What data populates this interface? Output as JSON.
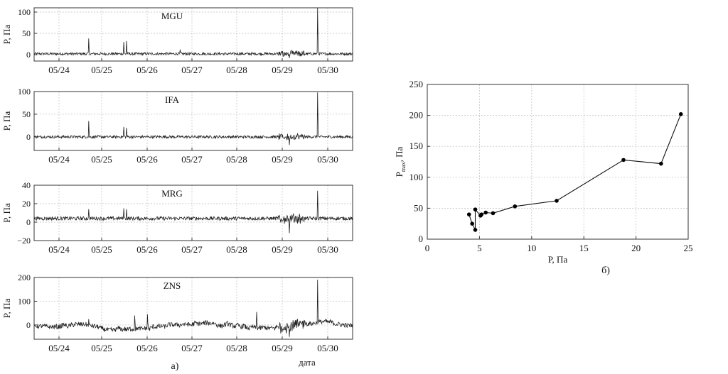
{
  "figure": {
    "label_a": "а)",
    "label_b": "б)"
  },
  "chart_data": [
    {
      "type": "line",
      "title": "MGU",
      "ylabel": "P, Па",
      "xlabel": "",
      "x_tick_labels": [
        "05/24",
        "05/25",
        "05/26",
        "05/27",
        "05/28",
        "05/29",
        "05/30"
      ],
      "xlim": [
        0,
        7.3
      ],
      "ylim": [
        -15,
        110
      ],
      "y_ticks": [
        0,
        50,
        100
      ],
      "grid": true,
      "events": [
        {
          "t": 1.25,
          "value": 38
        },
        {
          "t": 2.05,
          "value": 30
        },
        {
          "t": 2.12,
          "value": 32
        },
        {
          "t": 3.35,
          "value": 12
        },
        {
          "t": 5.85,
          "value": -8
        },
        {
          "t": 6.5,
          "value": 112
        }
      ],
      "noise_amplitude": 3,
      "baseline": 2
    },
    {
      "type": "line",
      "title": "IFA",
      "ylabel": "P, Па",
      "xlabel": "",
      "x_tick_labels": [
        "05/24",
        "05/25",
        "05/26",
        "05/27",
        "05/28",
        "05/29",
        "05/30"
      ],
      "xlim": [
        0,
        7.3
      ],
      "ylim": [
        -30,
        100
      ],
      "y_ticks": [
        0,
        50,
        100
      ],
      "grid": true,
      "events": [
        {
          "t": 1.25,
          "value": 35
        },
        {
          "t": 2.05,
          "value": 22
        },
        {
          "t": 2.12,
          "value": 20
        },
        {
          "t": 5.85,
          "value": -18
        },
        {
          "t": 6.5,
          "value": 98
        }
      ],
      "noise_amplitude": 3,
      "baseline": 0
    },
    {
      "type": "line",
      "title": "MRG",
      "ylabel": "P, Па",
      "xlabel": "",
      "x_tick_labels": [
        "05/24",
        "05/25",
        "05/26",
        "05/27",
        "05/28",
        "05/29",
        "05/30"
      ],
      "xlim": [
        0,
        7.3
      ],
      "ylim": [
        -20,
        40
      ],
      "y_ticks": [
        -20,
        0,
        20,
        40
      ],
      "grid": true,
      "events": [
        {
          "t": 1.25,
          "value": 14
        },
        {
          "t": 2.05,
          "value": 15
        },
        {
          "t": 2.12,
          "value": 14
        },
        {
          "t": 5.85,
          "value": -12
        },
        {
          "t": 6.5,
          "value": 34
        }
      ],
      "noise_amplitude": 2,
      "baseline": 4
    },
    {
      "type": "line",
      "title": "ZNS",
      "ylabel": "P, Па",
      "xlabel": "дата",
      "x_tick_labels": [
        "05/24",
        "05/25",
        "05/26",
        "05/27",
        "05/28",
        "05/29",
        "05/30"
      ],
      "xlim": [
        0,
        7.3
      ],
      "ylim": [
        -60,
        200
      ],
      "y_ticks": [
        0,
        100,
        200
      ],
      "grid": true,
      "events": [
        {
          "t": 1.25,
          "value": 25
        },
        {
          "t": 2.3,
          "value": 40
        },
        {
          "t": 2.6,
          "value": 45
        },
        {
          "t": 5.1,
          "value": 55
        },
        {
          "t": 5.85,
          "value": -50
        },
        {
          "t": 6.5,
          "value": 190
        }
      ],
      "noise_amplitude": 10,
      "baseline": -5
    },
    {
      "type": "line",
      "title": "",
      "xlabel": "P, Па",
      "ylabel": "P",
      "ylabel_sub": "max",
      "ylabel_suffix": ", Па",
      "xlim": [
        0,
        25
      ],
      "ylim": [
        0,
        250
      ],
      "x_ticks": [
        0,
        5,
        10,
        15,
        20,
        25
      ],
      "y_ticks": [
        0,
        50,
        100,
        150,
        200,
        250
      ],
      "grid": true,
      "points": [
        {
          "x": 4.0,
          "y": 40
        },
        {
          "x": 4.3,
          "y": 25
        },
        {
          "x": 4.6,
          "y": 15
        },
        {
          "x": 4.6,
          "y": 48
        },
        {
          "x": 5.1,
          "y": 38
        },
        {
          "x": 5.2,
          "y": 40
        },
        {
          "x": 5.6,
          "y": 43
        },
        {
          "x": 6.3,
          "y": 42
        },
        {
          "x": 8.4,
          "y": 53
        },
        {
          "x": 12.4,
          "y": 62
        },
        {
          "x": 18.8,
          "y": 128
        },
        {
          "x": 22.4,
          "y": 122
        },
        {
          "x": 24.3,
          "y": 202
        }
      ]
    }
  ]
}
